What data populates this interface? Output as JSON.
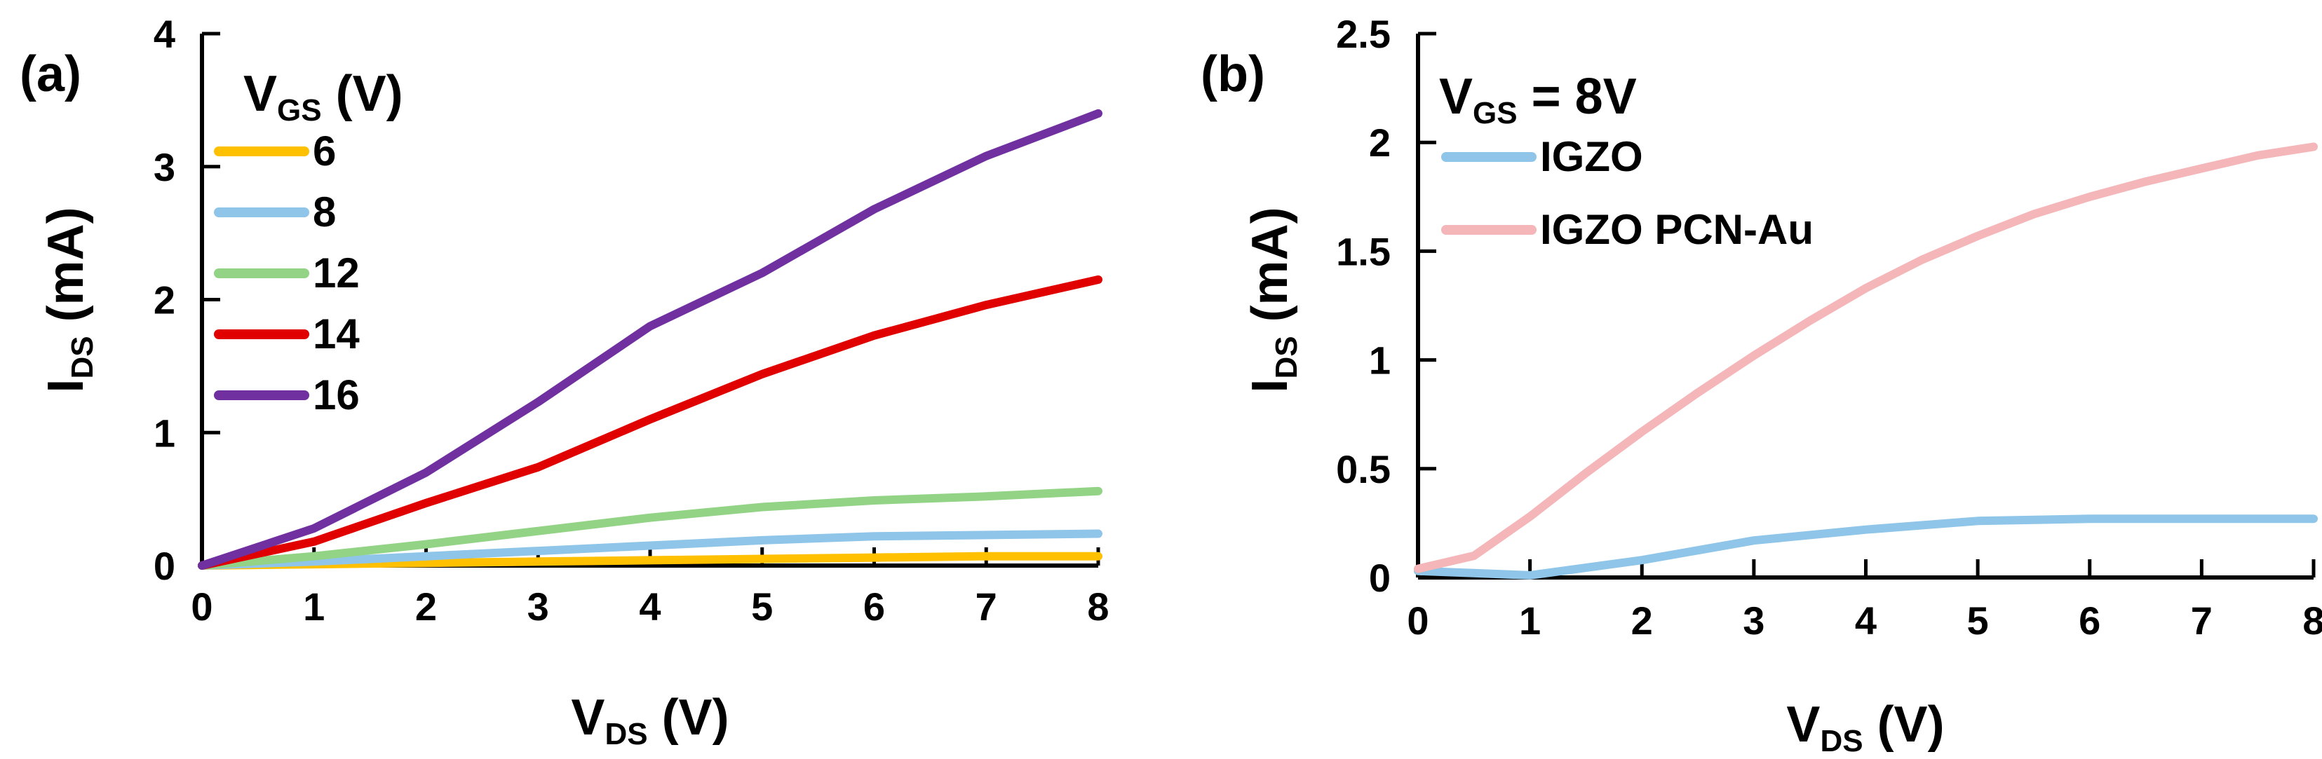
{
  "chart_data": [
    {
      "type": "line",
      "panel_label": "(a)",
      "xlabel": {
        "main": "V",
        "sub": "DS",
        "unit": " (V)"
      },
      "ylabel": {
        "main": "I",
        "sub": "DS",
        "unit": "(mA)"
      },
      "xlim": [
        0,
        8
      ],
      "ylim": [
        0,
        4
      ],
      "x_ticks": [
        "0",
        "1",
        "2",
        "3",
        "4",
        "5",
        "6",
        "7",
        "8"
      ],
      "y_ticks": [
        "0",
        "1",
        "2",
        "3",
        "4"
      ],
      "legend_title": {
        "main": "V",
        "sub": "GS",
        "unit": " (V)"
      },
      "legend_position": "top-left",
      "series": [
        {
          "name": "6",
          "color": "#FFC000",
          "x": [
            0,
            1,
            2,
            3,
            4,
            5,
            6,
            7,
            8
          ],
          "values": [
            0.0,
            0.01,
            0.02,
            0.03,
            0.04,
            0.05,
            0.06,
            0.07,
            0.07
          ]
        },
        {
          "name": "8",
          "color": "#8EC5E8",
          "x": [
            0,
            1,
            2,
            3,
            4,
            5,
            6,
            7,
            8
          ],
          "values": [
            0.0,
            0.03,
            0.07,
            0.11,
            0.15,
            0.19,
            0.22,
            0.23,
            0.24
          ]
        },
        {
          "name": "12",
          "color": "#92D386",
          "x": [
            0,
            1,
            2,
            3,
            4,
            5,
            6,
            7,
            8
          ],
          "values": [
            0.0,
            0.07,
            0.16,
            0.26,
            0.36,
            0.44,
            0.49,
            0.52,
            0.56
          ]
        },
        {
          "name": "14",
          "color": "#E00000",
          "x": [
            0,
            1,
            2,
            3,
            4,
            5,
            6,
            7,
            8
          ],
          "values": [
            0.0,
            0.18,
            0.47,
            0.74,
            1.1,
            1.44,
            1.73,
            1.96,
            2.15
          ]
        },
        {
          "name": "16",
          "color": "#7030A0",
          "x": [
            0,
            1,
            2,
            3,
            4,
            5,
            6,
            7,
            8
          ],
          "values": [
            0.0,
            0.28,
            0.7,
            1.23,
            1.8,
            2.2,
            2.68,
            3.08,
            3.4
          ]
        }
      ]
    },
    {
      "type": "line",
      "panel_label": "(b)",
      "xlabel": {
        "main": "V",
        "sub": "DS",
        "unit": " (V)"
      },
      "ylabel": {
        "main": "I",
        "sub": "DS",
        "unit": "(mA)"
      },
      "xlim": [
        0,
        8
      ],
      "ylim": [
        0,
        2.5
      ],
      "x_ticks": [
        "0",
        "1",
        "2",
        "3",
        "4",
        "5",
        "6",
        "7",
        "8"
      ],
      "y_ticks": [
        "0",
        "0.5",
        "1",
        "1.5",
        "2",
        "2.5"
      ],
      "legend_title": {
        "main": "V",
        "sub": "GS",
        "unit": " = 8V"
      },
      "legend_position": "top-left",
      "series": [
        {
          "name": "IGZO",
          "color": "#8EC5E8",
          "x": [
            0,
            0.5,
            1,
            2,
            3,
            4,
            5,
            6,
            7,
            8
          ],
          "values": [
            0.03,
            0.02,
            0.01,
            0.08,
            0.17,
            0.22,
            0.26,
            0.27,
            0.27,
            0.27
          ]
        },
        {
          "name": "IGZO PCN-Au",
          "color": "#F4B6B8",
          "x": [
            0,
            0.5,
            1,
            1.5,
            2,
            2.5,
            3,
            3.5,
            4,
            4.5,
            5,
            5.5,
            6,
            6.5,
            7,
            7.5,
            8
          ],
          "values": [
            0.04,
            0.1,
            0.28,
            0.48,
            0.67,
            0.85,
            1.02,
            1.18,
            1.33,
            1.46,
            1.57,
            1.67,
            1.75,
            1.82,
            1.88,
            1.94,
            1.98
          ]
        }
      ]
    }
  ]
}
